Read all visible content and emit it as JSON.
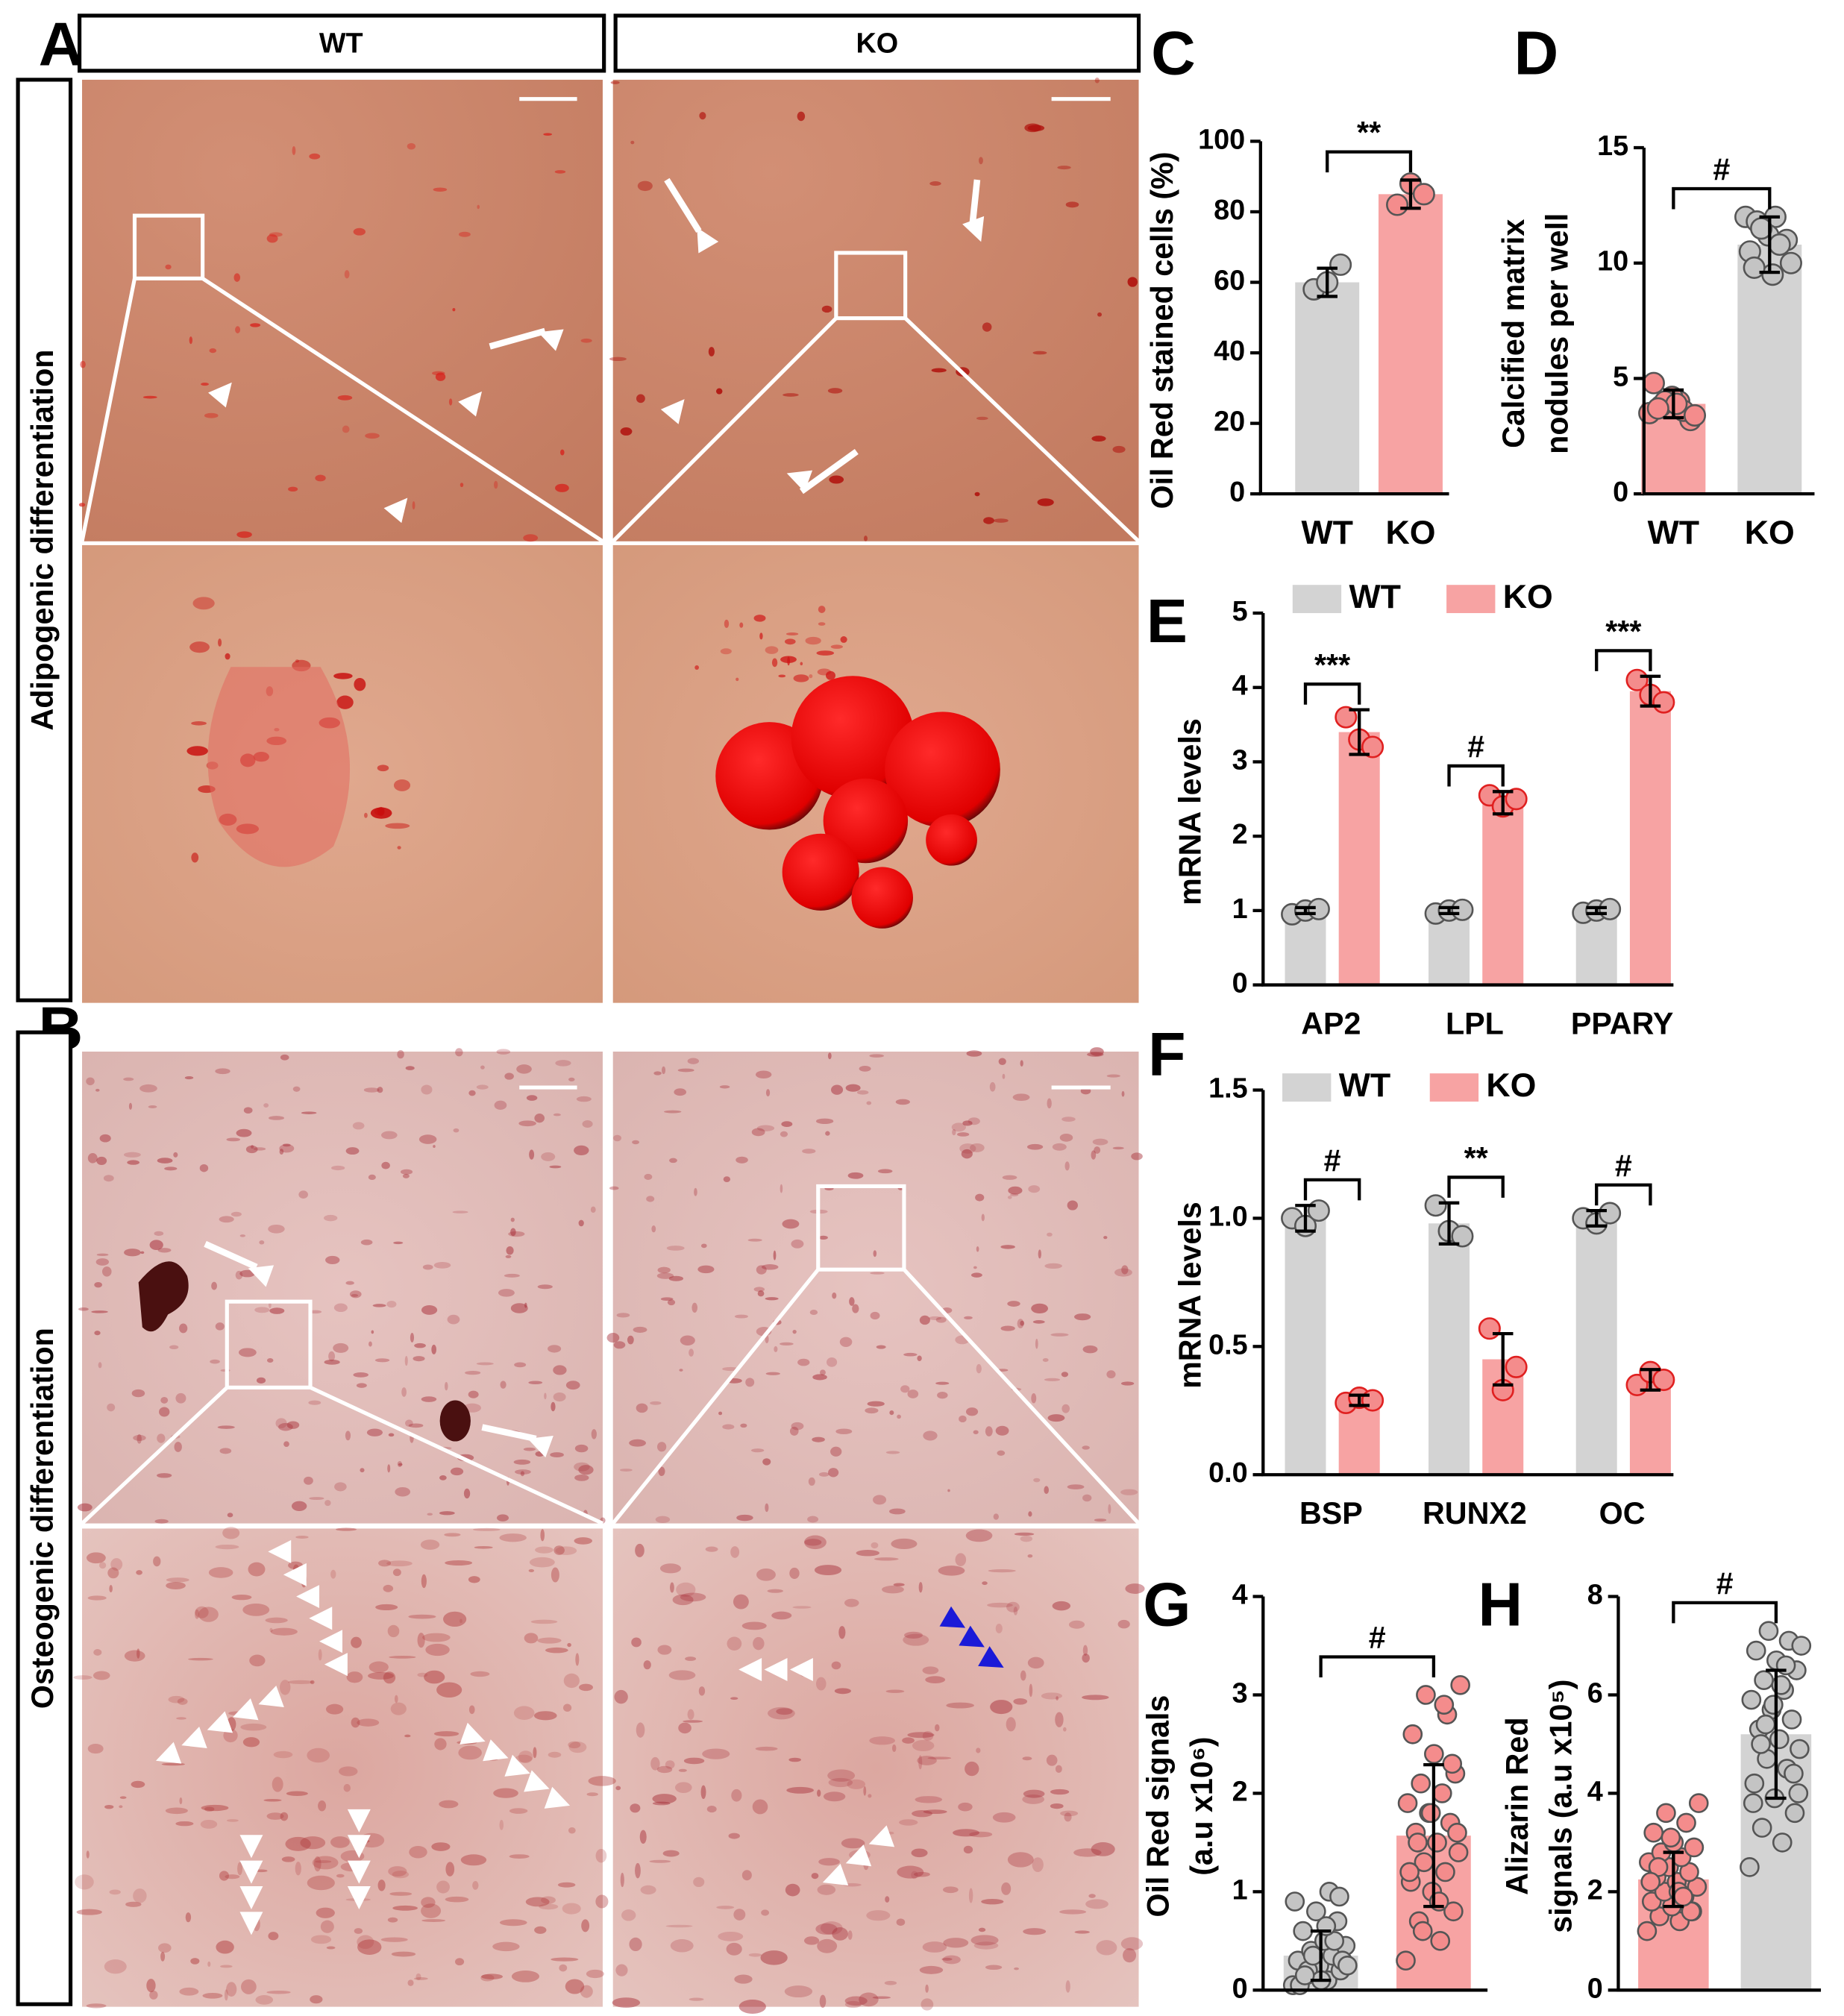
{
  "figure": {
    "panels": [
      "A",
      "B"
    ],
    "columns": [
      "WT",
      "KO"
    ],
    "rows": [
      "Adipogenic differentiation",
      "Osteogenic differentiation"
    ]
  },
  "chart_data": [
    {
      "type": "bar",
      "panel": "C",
      "ylabel": [
        "Oil Red stained cells (%)"
      ],
      "categories": [
        "WT",
        "KO"
      ],
      "values": [
        60,
        85
      ],
      "errors": [
        4,
        4
      ],
      "colors": [
        "#d3d3d3",
        "#f7a3a3"
      ],
      "point_colors": [
        "#c4c4c4",
        "#f48c8c"
      ],
      "points": [
        [
          58,
          60,
          65
        ],
        [
          82,
          88,
          85
        ]
      ],
      "annotation": "**",
      "ylim": [
        0,
        100
      ],
      "yticks": [
        0,
        20,
        40,
        60,
        80,
        100
      ]
    },
    {
      "type": "bar",
      "panel": "D",
      "ylabel": [
        "Calcified matrix",
        "nodules per well"
      ],
      "categories": [
        "WT",
        "KO"
      ],
      "values": [
        3.9,
        10.8
      ],
      "errors": [
        0.6,
        1.2
      ],
      "colors": [
        "#f7a3a3",
        "#d3d3d3"
      ],
      "point_colors": [
        "#f48c8c",
        "#c4c4c4"
      ],
      "points": [
        [
          3.5,
          4,
          3.8,
          3.2,
          4.2,
          4.8,
          3.6,
          4,
          3.4,
          3.9,
          3.7
        ],
        [
          12,
          12,
          11.8,
          11,
          11.2,
          10.5,
          10.8,
          11.5,
          10,
          9.5,
          9.8
        ]
      ],
      "annotation": "#",
      "ylim": [
        0,
        15
      ],
      "yticks": [
        0,
        5,
        10,
        15
      ]
    },
    {
      "type": "grouped",
      "panel": "E",
      "ylabel": [
        "mRNA levels"
      ],
      "categories": [
        "AP2",
        "LPL",
        "PPARY"
      ],
      "series": [
        {
          "name": "WT",
          "color": "#d3d3d3",
          "point_color": "#c4c4c4",
          "values": [
            1,
            1,
            1
          ],
          "errors": [
            0.04,
            0.04,
            0.04
          ],
          "points": [
            [
              0.95,
              1,
              1.02
            ],
            [
              0.96,
              1,
              1.01
            ],
            [
              0.97,
              1,
              1.02
            ]
          ]
        },
        {
          "name": "KO",
          "color": "#f7a3a3",
          "point_color": "#f48c8c",
          "values": [
            3.4,
            2.45,
            3.95
          ],
          "errors": [
            0.3,
            0.15,
            0.2
          ],
          "points": [
            [
              3.6,
              3.3,
              3.2
            ],
            [
              2.55,
              2.4,
              2.5
            ],
            [
              4.1,
              3.9,
              3.8
            ]
          ]
        }
      ],
      "annotations": [
        "***",
        "#",
        "***"
      ],
      "ylim": [
        0,
        5
      ],
      "yticks": [
        0,
        1,
        2,
        3,
        4,
        5
      ]
    },
    {
      "type": "grouped",
      "panel": "F",
      "ylabel": [
        "mRNA levels"
      ],
      "categories": [
        "BSP",
        "RUNX2",
        "OC"
      ],
      "series": [
        {
          "name": "WT",
          "color": "#d3d3d3",
          "point_color": "#c4c4c4",
          "values": [
            1,
            0.98,
            1
          ],
          "errors": [
            0.05,
            0.08,
            0.03
          ],
          "points": [
            [
              1,
              0.97,
              1.03
            ],
            [
              1.05,
              0.95,
              0.93
            ],
            [
              1,
              0.98,
              1.02
            ]
          ]
        },
        {
          "name": "KO",
          "color": "#f7a3a3",
          "point_color": "#f48c8c",
          "values": [
            0.29,
            0.45,
            0.37
          ],
          "errors": [
            0.02,
            0.1,
            0.04
          ],
          "points": [
            [
              0.28,
              0.3,
              0.29
            ],
            [
              0.57,
              0.33,
              0.42
            ],
            [
              0.35,
              0.4,
              0.37
            ]
          ]
        }
      ],
      "annotations": [
        "#",
        "**",
        "#"
      ],
      "ylim": [
        0,
        1.5
      ],
      "yticks": [
        {
          "value": 0,
          "label": "0.0"
        },
        0.5,
        {
          "value": 1,
          "label": "1.0"
        },
        1.5
      ]
    },
    {
      "type": "bar",
      "panel": "G",
      "ylabel": [
        "Oil Red signals",
        "(a.u x10⁶)"
      ],
      "categories": [
        "WT",
        "KO"
      ],
      "values": [
        0.35,
        1.57
      ],
      "errors": [
        0.25,
        0.72
      ],
      "colors": [
        "#d3d3d3",
        "#f7a3a3"
      ],
      "point_colors": [
        "#c4c4c4",
        "#f48c8c"
      ],
      "points": [
        [
          0.05,
          0.1,
          0.15,
          0.2,
          0.25,
          0.3,
          0.35,
          0.4,
          0.45,
          0.5,
          0.6,
          0.7,
          0.8,
          0.9,
          1.0,
          0.2,
          0.3,
          0.1,
          0.05,
          0.5,
          0.35,
          0.25,
          0.65,
          0.15,
          0.95
        ],
        [
          0.3,
          0.5,
          0.7,
          0.8,
          1.0,
          1.1,
          1.2,
          1.3,
          1.4,
          1.5,
          1.6,
          1.7,
          1.8,
          1.9,
          2.0,
          2.1,
          2.2,
          2.4,
          2.6,
          2.8,
          3.0,
          3.1,
          0.9,
          1.5,
          2.3,
          1.8,
          1.2,
          2.9,
          0.6,
          1.6
        ]
      ],
      "annotation": "#",
      "ylim": [
        0,
        4
      ],
      "yticks": [
        0,
        1,
        2,
        3,
        4
      ]
    },
    {
      "type": "bar",
      "panel": "H",
      "ylabel": [
        "Alizarin Red",
        "signals (a.u x10⁵)"
      ],
      "categories": [
        "WT",
        "KO"
      ],
      "values": [
        2.25,
        5.2
      ],
      "errors": [
        0.55,
        1.3
      ],
      "colors": [
        "#f7a3a3",
        "#d3d3d3"
      ],
      "point_colors": [
        "#f48c8c",
        "#c4c4c4"
      ],
      "points": [
        [
          1.2,
          1.4,
          1.5,
          1.6,
          1.7,
          1.8,
          1.9,
          2.0,
          2.1,
          2.2,
          2.3,
          2.4,
          2.5,
          2.6,
          2.7,
          2.8,
          2.9,
          3.0,
          3.2,
          3.4,
          3.6,
          3.8,
          2.0,
          2.5,
          1.6,
          3.1,
          2.2,
          1.9
        ],
        [
          2.5,
          3.0,
          3.3,
          3.6,
          3.9,
          4.2,
          4.5,
          4.7,
          4.9,
          5.1,
          5.3,
          5.5,
          5.7,
          5.9,
          6.1,
          6.3,
          6.5,
          6.7,
          6.9,
          7.1,
          7.3,
          7.0,
          6.2,
          5.0,
          4.4,
          5.8,
          3.8,
          6.6,
          5.4,
          4.0
        ]
      ],
      "annotation": "#",
      "ylim": [
        0,
        8
      ],
      "yticks": [
        0,
        2,
        4,
        6,
        8
      ]
    }
  ]
}
